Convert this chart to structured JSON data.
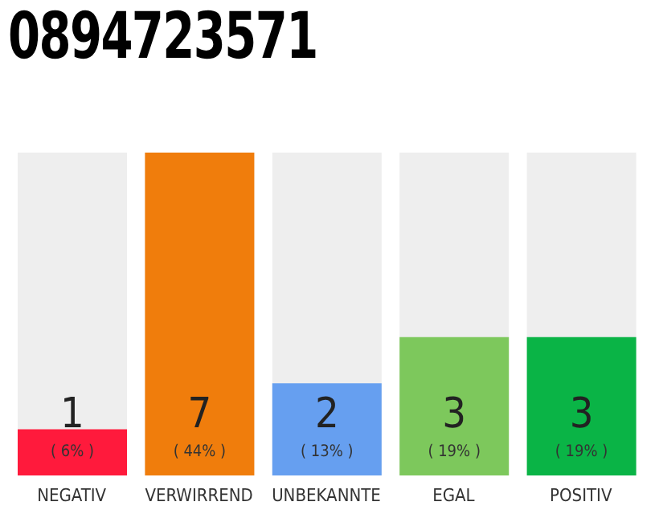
{
  "chart_data": {
    "type": "bar",
    "title": "0894723571",
    "categories": [
      "NEGATIV",
      "VERWIRREND",
      "UNBEKANNTE",
      "EGAL",
      "POSITIV"
    ],
    "values": [
      1,
      7,
      2,
      3,
      3
    ],
    "colors": [
      "#ff1a3c",
      "#f07d0c",
      "#669ff0",
      "#7dc85c",
      "#0ab446"
    ],
    "data_labels": true,
    "annotations": [
      "( 6% )",
      "( 44% )",
      "( 13% )",
      "( 19% )",
      "( 19% )"
    ],
    "grid": false,
    "legend": false
  }
}
